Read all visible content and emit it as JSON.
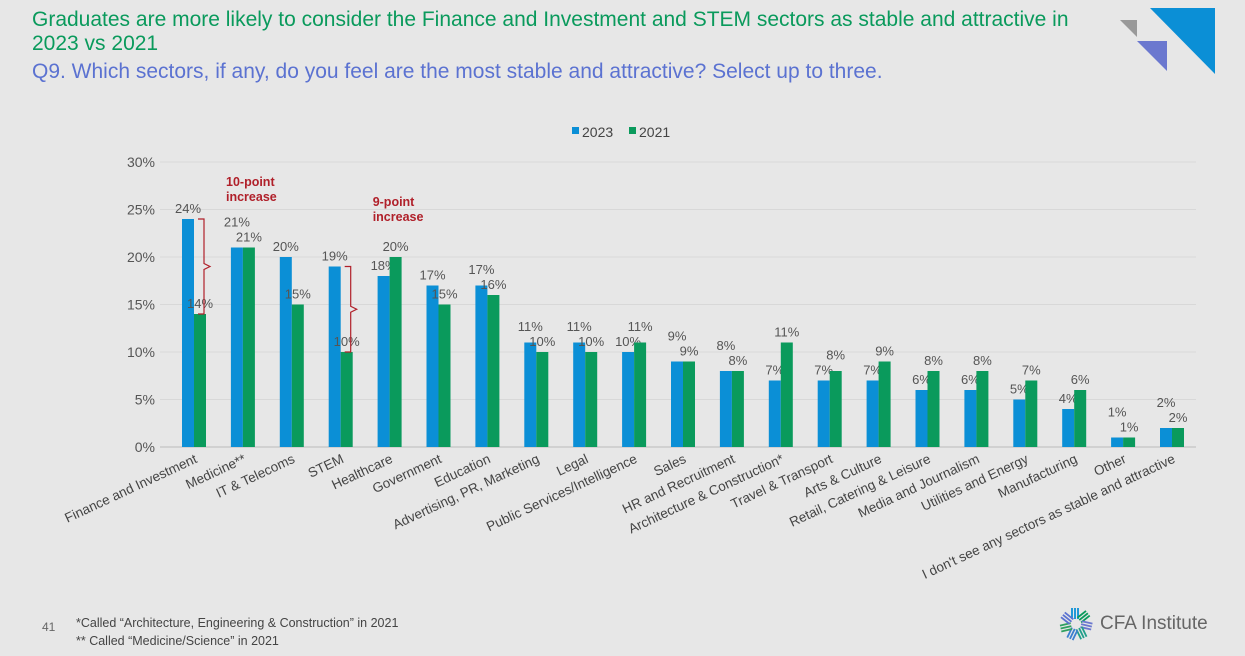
{
  "header": {
    "title": "Graduates are more likely to consider the Finance and Investment and STEM sectors as stable and attractive in 2023 vs 2021",
    "subtitle": "Q9. Which sectors, if any, do you feel are the most stable and attractive? Select up to three."
  },
  "footer": {
    "page_number": "41",
    "note1": "*Called “Architecture, Engineering & Construction” in 2021",
    "note2": "** Called “Medicine/Science” in 2021",
    "logo_text": "CFA Institute"
  },
  "colors": {
    "series_2023": "#0b8fd6",
    "series_2021": "#0a9a5c",
    "title": "#0a9a5c",
    "subtitle": "#5b72d1",
    "annotation": "#b0202a"
  },
  "chart_data": {
    "type": "bar",
    "ylim": [
      0,
      30
    ],
    "yticks": [
      "0%",
      "5%",
      "10%",
      "15%",
      "20%",
      "25%",
      "30%"
    ],
    "ytick_values": [
      0,
      5,
      10,
      15,
      20,
      25,
      30
    ],
    "grid": true,
    "legend_position": "top",
    "categories": [
      "Finance and Investment",
      "Medicine**",
      "IT & Telecoms",
      "STEM",
      "Healthcare",
      "Government",
      "Education",
      "Advertising, PR, Marketing",
      "Legal",
      "Public Services/Intelligence",
      "Sales",
      "HR and Recruitment",
      "Architecture & Construction*",
      "Travel & Transport",
      "Arts & Culture",
      "Retail, Catering & Leisure",
      "Media and Journalism",
      "Utilities and Energy",
      "Manufacturing",
      "Other",
      "I don't see any sectors as stable and attractive"
    ],
    "series": [
      {
        "name": "2023",
        "values": [
          24,
          21,
          20,
          19,
          18,
          17,
          17,
          11,
          11,
          10,
          9,
          8,
          7,
          7,
          7,
          6,
          6,
          5,
          4,
          1,
          2
        ]
      },
      {
        "name": "2021",
        "values": [
          14,
          21,
          15,
          10,
          20,
          15,
          16,
          10,
          10,
          11,
          9,
          8,
          11,
          8,
          9,
          8,
          8,
          7,
          6,
          1,
          2
        ]
      }
    ],
    "annotations": [
      {
        "text_line1": "10-point",
        "text_line2": "increase",
        "category": "Finance and Investment"
      },
      {
        "text_line1": "9-point",
        "text_line2": "increase",
        "category": "STEM"
      }
    ]
  }
}
